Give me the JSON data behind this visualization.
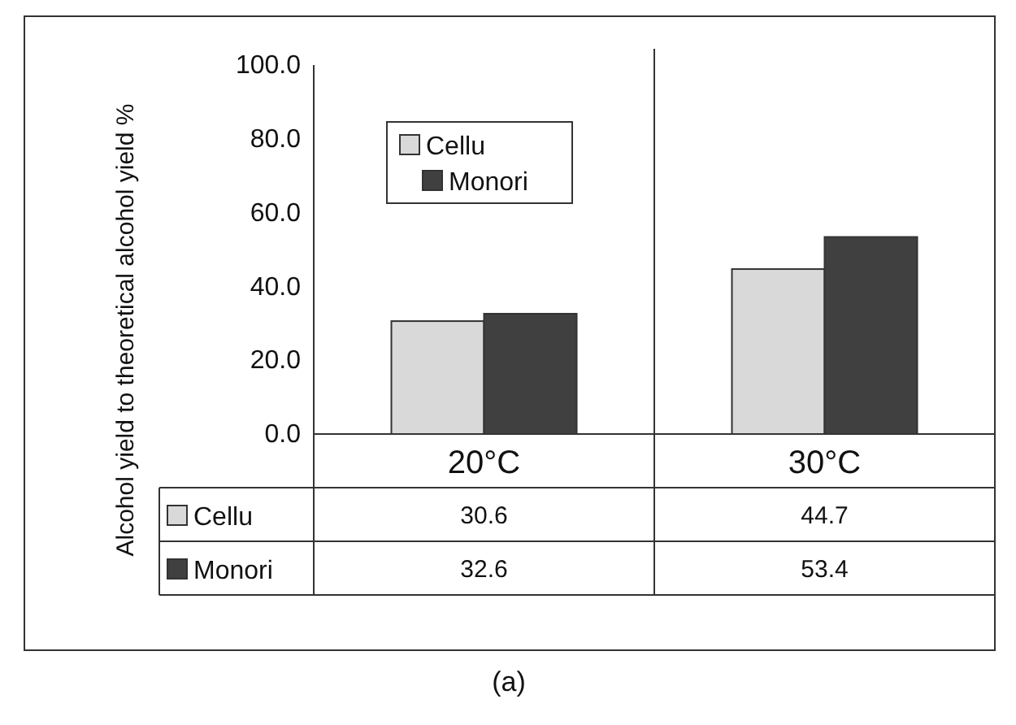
{
  "chart_data": {
    "type": "bar",
    "ylabel": "Alcohol yield to theoretical alcohol yield %",
    "categories": [
      "20°C",
      "30°C"
    ],
    "series": [
      {
        "name": "Cellu",
        "color": "#d9d9d9",
        "values": [
          30.6,
          44.7
        ]
      },
      {
        "name": "Monori",
        "color": "#404040",
        "values": [
          32.6,
          53.4
        ]
      }
    ],
    "ylim": [
      0,
      100
    ],
    "yticks": [
      {
        "value": 0,
        "label": "0.0"
      },
      {
        "value": 20,
        "label": "20.0"
      },
      {
        "value": 40,
        "label": "40.0"
      },
      {
        "value": 60,
        "label": "60.0"
      },
      {
        "value": 80,
        "label": "80.0"
      },
      {
        "value": 100,
        "label": "100.0"
      }
    ],
    "legend": "top left",
    "data_labels": true,
    "grid": false,
    "annotations": [
      "(a)"
    ]
  }
}
